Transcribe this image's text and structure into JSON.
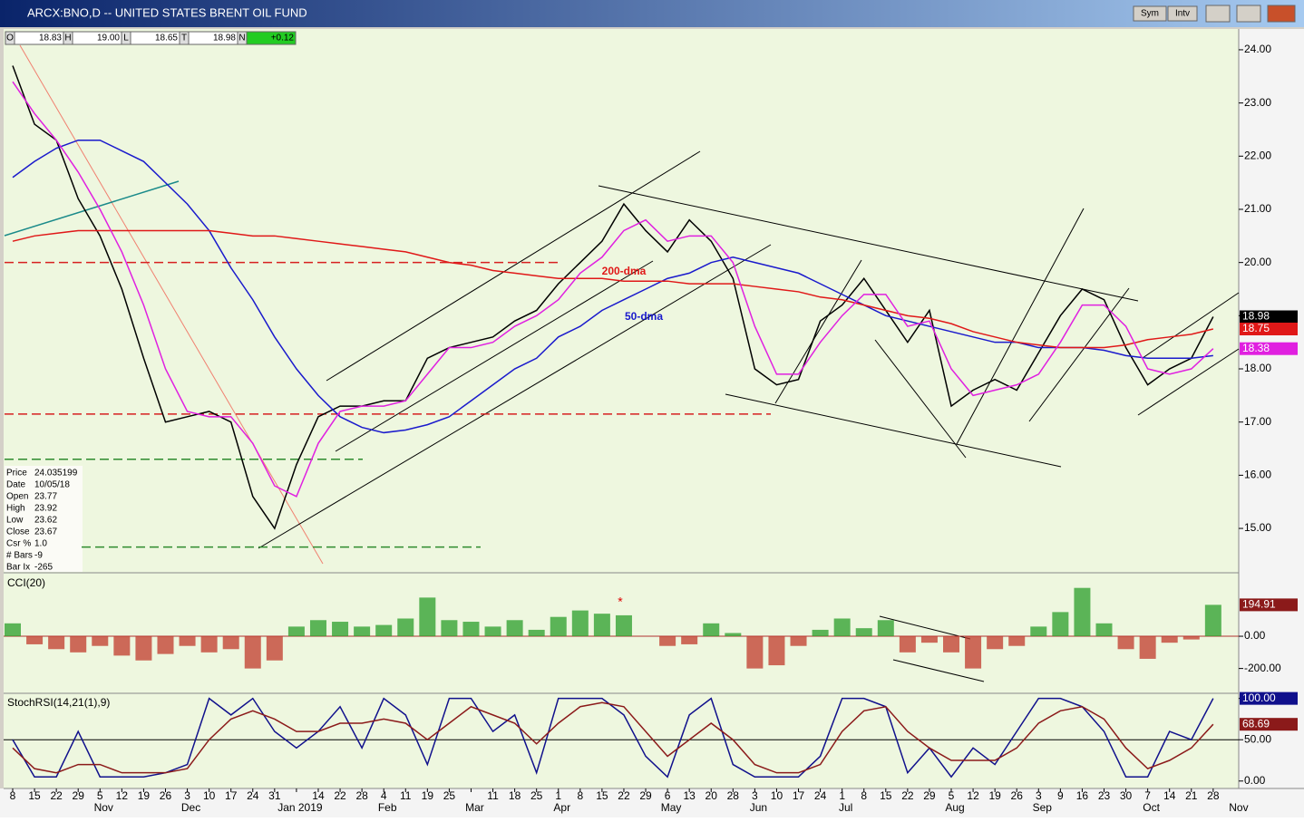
{
  "window": {
    "title": "ARCX:BNO,D -- UNITED STATES BRENT OIL FUND",
    "buttons": [
      "Sym",
      "Intv"
    ]
  },
  "quote": [
    [
      "O",
      "18.83"
    ],
    [
      "H",
      "19.00"
    ],
    [
      "L",
      "18.65"
    ],
    [
      "T",
      "18.98"
    ],
    [
      "N",
      "+0.12"
    ]
  ],
  "data_window": [
    [
      "Price",
      "24.035199"
    ],
    [
      "Date",
      "10/05/18"
    ],
    [
      "Open",
      "23.77"
    ],
    [
      "High",
      "23.92"
    ],
    [
      "Low",
      "23.62"
    ],
    [
      "Close",
      "23.67"
    ],
    [
      "Csr %",
      "1.0"
    ],
    [
      "# Bars",
      "-9"
    ],
    [
      "Bar Ix",
      "-265"
    ]
  ],
  "chart_data": [
    {
      "type": "line",
      "categories": [
        "8",
        "15",
        "22",
        "29",
        "5",
        "12",
        "19",
        "26",
        "3",
        "10",
        "17",
        "24",
        "31",
        null,
        "14",
        "22",
        "28",
        "4",
        "11",
        "19",
        "25",
        null,
        "11",
        "18",
        "25",
        "1",
        "8",
        "15",
        "22",
        "29",
        "6",
        "13",
        "20",
        "28",
        "3",
        "10",
        "17",
        "24",
        "1",
        "8",
        "15",
        "22",
        "29",
        "5",
        "12",
        "19",
        "26",
        "3",
        "9",
        "16",
        "23",
        "30",
        "7",
        "14",
        "21",
        "28"
      ],
      "month_labels": [
        "Nov",
        "Dec",
        "Jan 2019",
        "Feb",
        "Mar",
        "Apr",
        "May",
        "Jun",
        "Jul",
        "Aug",
        "Sep",
        "Oct",
        "Nov"
      ],
      "ylim": [
        14.2,
        24.05
      ],
      "yticks": [
        {
          "value": 15,
          "label": "15.00"
        },
        {
          "value": 16,
          "label": "16.00"
        },
        {
          "value": 17,
          "label": "17.00"
        },
        {
          "value": 18,
          "label": "18.00"
        },
        {
          "value": 19,
          "label": "19.00"
        },
        {
          "value": 20,
          "label": "20.00"
        },
        {
          "value": 21,
          "label": "21.00"
        },
        {
          "value": 22,
          "label": "22.00"
        },
        {
          "value": 23,
          "label": "23.00"
        },
        {
          "value": 24,
          "label": "24.00"
        }
      ],
      "reference_lines": [
        {
          "value": 20,
          "color": "#d62020"
        },
        {
          "value": 17.15,
          "color": "#d62020"
        },
        {
          "value": 16.3,
          "color": "#2e8b2e"
        },
        {
          "value": 14.65,
          "color": "#2e8b2e"
        }
      ],
      "series": [
        {
          "color": "#000000",
          "last_label": "18.98",
          "values": [
            23.7,
            22.6,
            22.3,
            21.2,
            20.5,
            19.5,
            18.2,
            17.0,
            17.1,
            17.2,
            17.0,
            15.6,
            15.0,
            16.2,
            17.1,
            17.3,
            17.3,
            17.4,
            17.4,
            18.2,
            18.4,
            18.5,
            18.6,
            18.9,
            19.1,
            19.6,
            20.0,
            20.4,
            21.1,
            20.6,
            20.2,
            20.8,
            20.4,
            19.7,
            18.0,
            17.7,
            17.8,
            18.9,
            19.2,
            19.7,
            19.1,
            18.5,
            19.1,
            17.3,
            17.6,
            17.8,
            17.6,
            18.3,
            19.0,
            19.5,
            19.3,
            18.4,
            17.7,
            18.0,
            18.2,
            18.98
          ]
        },
        {
          "name": "50-dma",
          "color": "#1a1acc",
          "values": [
            21.6,
            21.9,
            22.15,
            22.3,
            22.3,
            22.1,
            21.9,
            21.5,
            21.1,
            20.6,
            19.9,
            19.3,
            18.6,
            18.0,
            17.5,
            17.1,
            16.9,
            16.8,
            16.85,
            16.95,
            17.1,
            17.4,
            17.7,
            18.0,
            18.2,
            18.6,
            18.8,
            19.1,
            19.3,
            19.5,
            19.7,
            19.8,
            20.0,
            20.1,
            20.0,
            19.9,
            19.8,
            19.6,
            19.4,
            19.2,
            19.0,
            18.9,
            18.8,
            18.7,
            18.6,
            18.5,
            18.5,
            18.4,
            18.4,
            18.4,
            18.35,
            18.25,
            18.2,
            18.2,
            18.2,
            18.25
          ]
        },
        {
          "name": "200-dma",
          "color": "#e01818",
          "last_label": "18.75",
          "values": [
            20.4,
            20.5,
            20.55,
            20.6,
            20.6,
            20.6,
            20.6,
            20.6,
            20.6,
            20.6,
            20.55,
            20.5,
            20.5,
            20.45,
            20.4,
            20.35,
            20.3,
            20.25,
            20.2,
            20.1,
            20.0,
            19.95,
            19.85,
            19.8,
            19.75,
            19.7,
            19.7,
            19.7,
            19.65,
            19.65,
            19.65,
            19.6,
            19.6,
            19.6,
            19.55,
            19.5,
            19.45,
            19.35,
            19.3,
            19.2,
            19.1,
            19.0,
            18.95,
            18.85,
            18.7,
            18.6,
            18.5,
            18.45,
            18.4,
            18.4,
            18.4,
            18.45,
            18.55,
            18.6,
            18.65,
            18.75
          ]
        },
        {
          "color": "#e020e0",
          "last_label": "18.38",
          "values": [
            23.4,
            22.8,
            22.3,
            21.7,
            21.0,
            20.2,
            19.2,
            18.0,
            17.2,
            17.1,
            17.1,
            16.6,
            15.8,
            15.6,
            16.6,
            17.2,
            17.3,
            17.3,
            17.4,
            17.9,
            18.4,
            18.4,
            18.5,
            18.8,
            19.0,
            19.3,
            19.8,
            20.1,
            20.6,
            20.8,
            20.4,
            20.5,
            20.5,
            20.0,
            18.8,
            17.9,
            17.9,
            18.5,
            19.0,
            19.4,
            19.4,
            18.8,
            18.9,
            18.0,
            17.5,
            17.6,
            17.7,
            17.9,
            18.5,
            19.2,
            19.2,
            18.8,
            18.0,
            17.9,
            18.0,
            18.38
          ]
        }
      ]
    },
    {
      "type": "bar",
      "title": "CCI(20)",
      "annotation": "*",
      "colors": {
        "positive": "#2a9d2a",
        "negative": "#c0392b"
      },
      "ylim": [
        -354,
        377
      ],
      "yticks": [
        {
          "value": 0,
          "label": "0.00"
        },
        {
          "value": -200,
          "label": "-200.00"
        }
      ],
      "last_label": "194.91",
      "values": [
        80,
        -50,
        -80,
        -100,
        -60,
        -120,
        -150,
        -110,
        -60,
        -100,
        -80,
        -200,
        -150,
        60,
        100,
        90,
        60,
        70,
        110,
        240,
        100,
        90,
        60,
        100,
        40,
        120,
        160,
        140,
        130,
        0,
        -60,
        -50,
        80,
        20,
        -200,
        -180,
        -60,
        40,
        110,
        50,
        100,
        -100,
        -40,
        -100,
        -200,
        -80,
        -60,
        60,
        150,
        300,
        80,
        -80,
        -140,
        -40,
        -20,
        194.91
      ]
    },
    {
      "type": "line",
      "title": "StochRSI(14,21(1),9)",
      "ylim": [
        -9,
        104
      ],
      "yticks": [
        {
          "value": 0,
          "label": "0.00"
        },
        {
          "value": 50,
          "label": "50.00"
        },
        {
          "value": 100,
          "label": "100.00"
        }
      ],
      "reference_lines": [
        {
          "value": 50,
          "color": "#000000"
        }
      ],
      "series": [
        {
          "color": "#10108c",
          "last_label": "100.00",
          "values": [
            50,
            5,
            5,
            60,
            5,
            5,
            5,
            10,
            20,
            100,
            80,
            100,
            60,
            40,
            60,
            90,
            40,
            100,
            80,
            20,
            100,
            100,
            60,
            80,
            10,
            100,
            100,
            100,
            80,
            30,
            5,
            80,
            100,
            20,
            5,
            5,
            5,
            30,
            100,
            100,
            90,
            10,
            40,
            5,
            40,
            20,
            60,
            100,
            100,
            90,
            60,
            5,
            5,
            60,
            50,
            100
          ]
        },
        {
          "color": "#8b1a1a",
          "last_label": "68.69",
          "values": [
            40,
            15,
            10,
            20,
            20,
            10,
            10,
            10,
            15,
            50,
            75,
            85,
            75,
            60,
            60,
            70,
            70,
            75,
            70,
            50,
            70,
            90,
            80,
            70,
            45,
            70,
            90,
            95,
            90,
            60,
            30,
            50,
            70,
            50,
            20,
            10,
            10,
            20,
            60,
            85,
            90,
            60,
            40,
            25,
            25,
            25,
            40,
            70,
            85,
            90,
            75,
            40,
            15,
            25,
            40,
            68.69
          ]
        }
      ]
    }
  ]
}
